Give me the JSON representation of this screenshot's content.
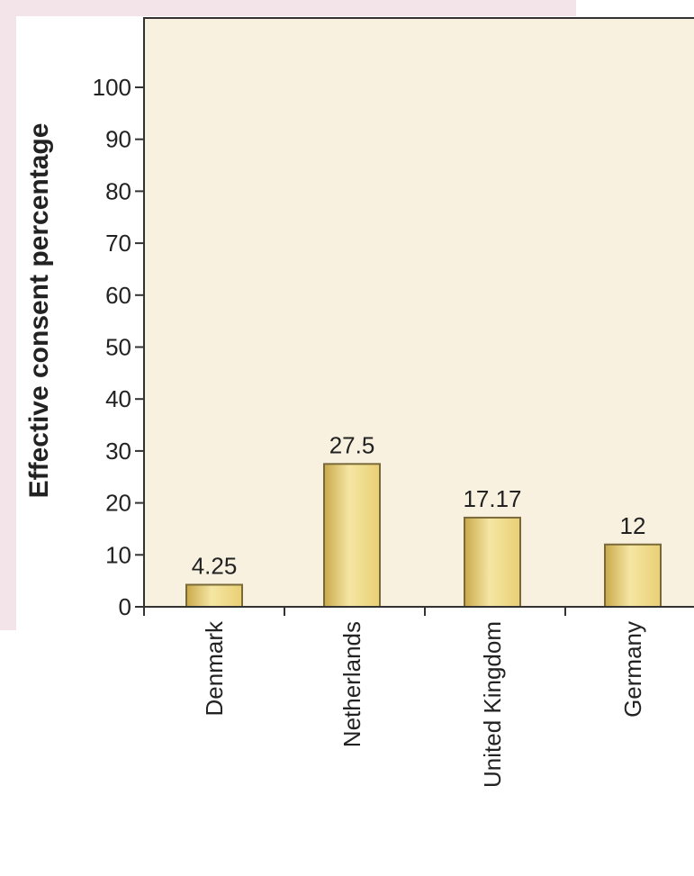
{
  "chart_data": {
    "type": "bar",
    "title": "",
    "xlabel": "",
    "ylabel": "Effective consent percentage",
    "categories": [
      "Denmark",
      "Netherlands",
      "United Kingdom",
      "Germany"
    ],
    "values": [
      4.25,
      27.5,
      17.17,
      12
    ],
    "data_labels": [
      "4.25",
      "27.5",
      "17.17",
      "12"
    ],
    "yticks": [
      0,
      10,
      20,
      30,
      40,
      50,
      60,
      70,
      80,
      90,
      100
    ],
    "ylim": [
      0,
      115
    ],
    "grid": false,
    "legend": "none",
    "colors": {
      "plot_background": "#f8f1e0",
      "bar_fill_light": "#f5e6a3",
      "bar_fill_mid": "#e9cf74",
      "bar_fill_dark": "#c9a94a",
      "bar_stroke": "#7a6a3a",
      "axis": "#333333",
      "text": "#222222",
      "page_tint": "#f3e4ea"
    }
  }
}
